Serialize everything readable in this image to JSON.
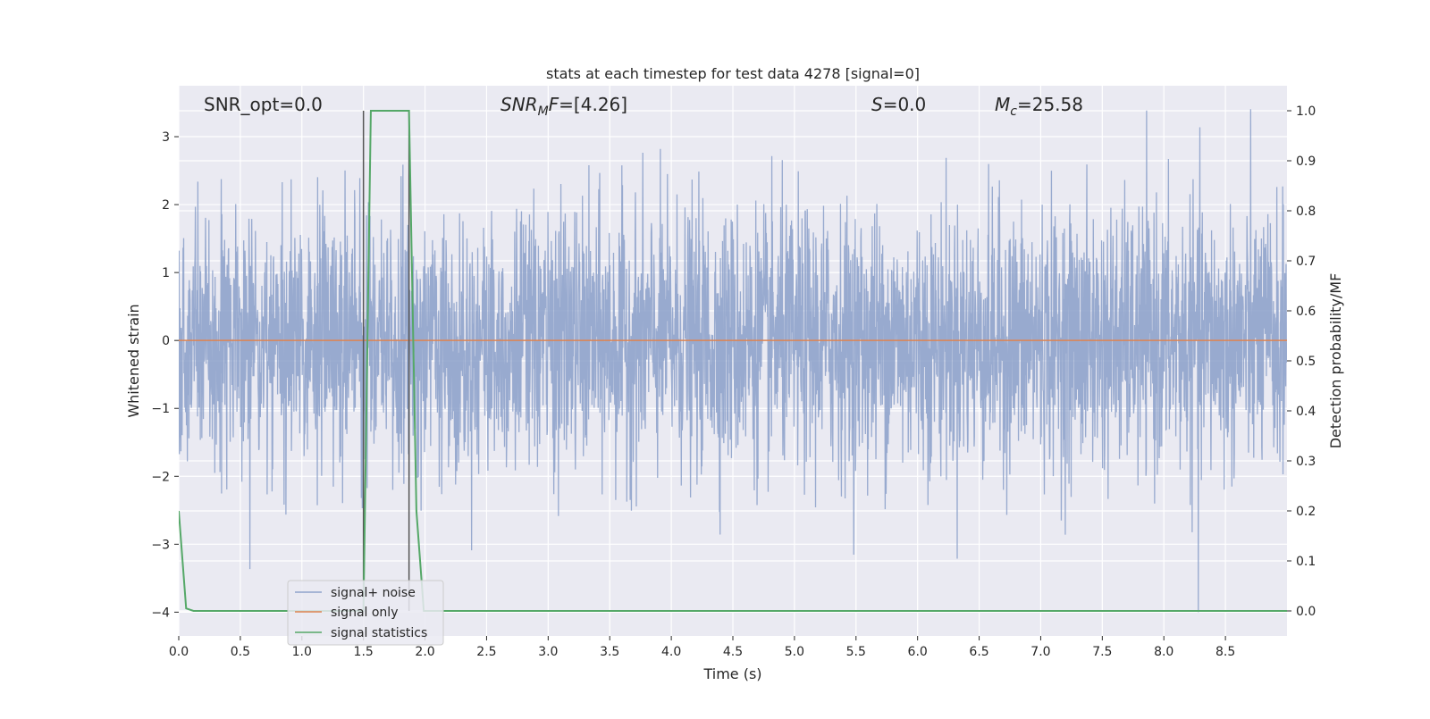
{
  "chart_data": {
    "type": "line",
    "title": "stats at each timestep for test data 4278 [signal=0]",
    "xlabel": "Time (s)",
    "ylabel": "Whitened strain",
    "y2label": "Detection probability/MF",
    "xlim": [
      0,
      9.0
    ],
    "ylim": [
      -4.35,
      3.75
    ],
    "y2lim": [
      -0.05,
      1.05
    ],
    "xticks": [
      "0.0",
      "0.5",
      "1.0",
      "1.5",
      "2.0",
      "2.5",
      "3.0",
      "3.5",
      "4.0",
      "4.5",
      "5.0",
      "5.5",
      "6.0",
      "6.5",
      "7.0",
      "7.5",
      "8.0",
      "8.5"
    ],
    "yticks": [
      "3",
      "2",
      "1",
      "0",
      "−1",
      "−2",
      "−3",
      "−4"
    ],
    "y2ticks": [
      "1.0",
      "0.9",
      "0.8",
      "0.7",
      "0.6",
      "0.5",
      "0.4",
      "0.3",
      "0.2",
      "0.1",
      "0.0"
    ],
    "grid": true,
    "legend_placement": "lower-left",
    "annotations": {
      "snr_opt": "SNR_opt=0.0",
      "snr_mf_sym": "SNR",
      "snr_mf_sub": "M",
      "snr_mf_rest": "F=[4.26]",
      "s_sym": "S",
      "s_rest": "=0.0",
      "mc_sym": "M",
      "mc_sub": "c",
      "mc_rest": "=25.58"
    },
    "vertical_markers": [
      1.5,
      1.87
    ],
    "series": [
      {
        "name": "signal+ noise",
        "color": "#8fa3cb",
        "axis": "left",
        "description_values": {
          "typical_range": [
            -1.5,
            1.5
          ],
          "peak_max": 3.45,
          "peak_min": -4.0,
          "peak_min_x": 8.28
        }
      },
      {
        "name": "signal only",
        "color": "#dd8452",
        "axis": "left",
        "x": [
          0,
          9.0
        ],
        "y": [
          0,
          0
        ]
      },
      {
        "name": "signal statistics",
        "color": "#55a868",
        "axis": "right",
        "x": [
          0.0,
          0.06,
          0.12,
          1.5,
          1.56,
          1.62,
          1.87,
          1.93,
          1.99,
          9.0
        ],
        "y": [
          0.2,
          0.005,
          0.0,
          0.0,
          1.0,
          1.0,
          1.0,
          0.2,
          0.0,
          0.0
        ]
      }
    ]
  }
}
